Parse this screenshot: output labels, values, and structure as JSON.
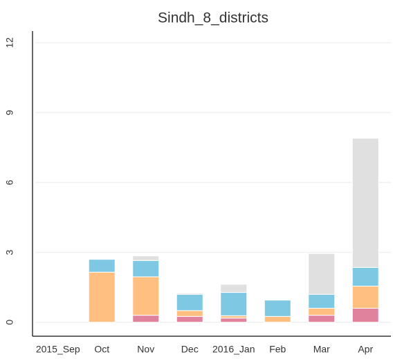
{
  "chart_data": {
    "type": "stacked_bar",
    "title": "Sindh_8_districts",
    "categories": [
      "2015_Sep",
      "Oct",
      "Nov",
      "Dec",
      "2016_Jan",
      "Feb",
      "Mar",
      "Apr"
    ],
    "series": [
      {
        "color": "#e0829e",
        "values": [
          0,
          0,
          0.3,
          0.25,
          0.18,
          0,
          0.3,
          0.6
        ]
      },
      {
        "color": "#ffbf80",
        "values": [
          0,
          2.15,
          1.65,
          0.25,
          0.1,
          0.25,
          0.3,
          0.95
        ]
      },
      {
        "color": "#7ec8e3",
        "values": [
          0,
          0.55,
          0.7,
          0.7,
          1.0,
          0.7,
          0.6,
          0.8
        ]
      },
      {
        "color": "#e0e0e0",
        "values": [
          0,
          0,
          0.2,
          0.05,
          0.35,
          0,
          1.75,
          5.55
        ]
      }
    ],
    "ylim": [
      -0.6,
      12.5
    ],
    "yticks": [
      0,
      3,
      6,
      9,
      12
    ],
    "grid": true
  }
}
